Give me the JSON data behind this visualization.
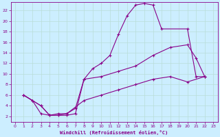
{
  "xlabel": "Windchill (Refroidissement éolien,°C)",
  "background_color": "#cceeff",
  "grid_color": "#b8ddd8",
  "line_color": "#880088",
  "xlim": [
    -0.5,
    23.5
  ],
  "ylim": [
    1,
    23.5
  ],
  "xticks": [
    0,
    1,
    2,
    3,
    4,
    5,
    6,
    7,
    8,
    9,
    10,
    11,
    12,
    13,
    14,
    15,
    16,
    17,
    18,
    19,
    20,
    21,
    22,
    23
  ],
  "yticks": [
    2,
    4,
    6,
    8,
    10,
    12,
    14,
    16,
    18,
    20,
    22
  ],
  "line1_x": [
    1,
    2,
    3,
    4,
    5,
    6,
    7,
    8,
    9,
    10,
    11,
    12,
    13,
    14,
    15,
    16,
    17,
    20,
    21,
    22
  ],
  "line1_y": [
    6.0,
    5.0,
    4.0,
    2.2,
    2.2,
    2.2,
    2.5,
    9.0,
    11.0,
    12.0,
    13.5,
    17.5,
    21.0,
    23.0,
    23.3,
    23.0,
    18.5,
    18.5,
    9.5,
    9.5
  ],
  "line2_x": [
    1,
    3,
    4,
    5,
    6,
    7,
    8,
    10,
    12,
    14,
    16,
    18,
    20,
    21,
    22
  ],
  "line2_y": [
    6.0,
    4.0,
    2.2,
    2.5,
    2.5,
    3.5,
    9.0,
    9.5,
    10.5,
    11.5,
    13.5,
    15.0,
    15.5,
    13.0,
    9.5
  ],
  "line3_x": [
    1,
    2,
    3,
    4,
    5,
    6,
    8,
    10,
    12,
    14,
    16,
    18,
    20,
    22
  ],
  "line3_y": [
    6.0,
    5.0,
    2.5,
    2.2,
    2.2,
    2.5,
    5.0,
    6.0,
    7.0,
    8.0,
    9.0,
    9.5,
    8.5,
    9.5
  ]
}
